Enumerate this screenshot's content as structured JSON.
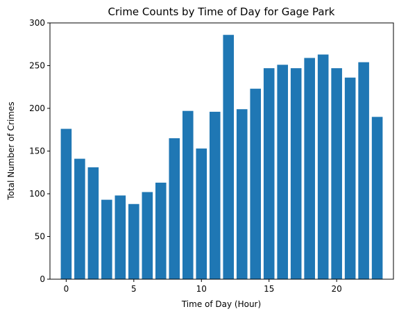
{
  "chart_data": {
    "type": "bar",
    "title": "Crime Counts by Time of Day for Gage Park",
    "xlabel": "Time of Day (Hour)",
    "ylabel": "Total Number of Crimes",
    "x": [
      0,
      1,
      2,
      3,
      4,
      5,
      6,
      7,
      8,
      9,
      10,
      11,
      12,
      13,
      14,
      15,
      16,
      17,
      18,
      19,
      20,
      21,
      22,
      23
    ],
    "values": [
      176,
      141,
      131,
      93,
      98,
      88,
      102,
      113,
      165,
      197,
      153,
      196,
      286,
      199,
      223,
      247,
      251,
      247,
      259,
      263,
      247,
      236,
      254,
      190
    ],
    "xlim": [
      -1.2,
      24.2
    ],
    "ylim": [
      0,
      300
    ],
    "xticks": [
      0,
      5,
      10,
      15,
      20
    ],
    "xtick_labels": [
      "0",
      "5",
      "10",
      "15",
      "20"
    ],
    "yticks": [
      0,
      50,
      100,
      150,
      200,
      250,
      300
    ],
    "ytick_labels": [
      "0",
      "50",
      "100",
      "150",
      "200",
      "250",
      "300"
    ],
    "bar_color": "#1f77b4",
    "grid": false,
    "legend": "none"
  }
}
